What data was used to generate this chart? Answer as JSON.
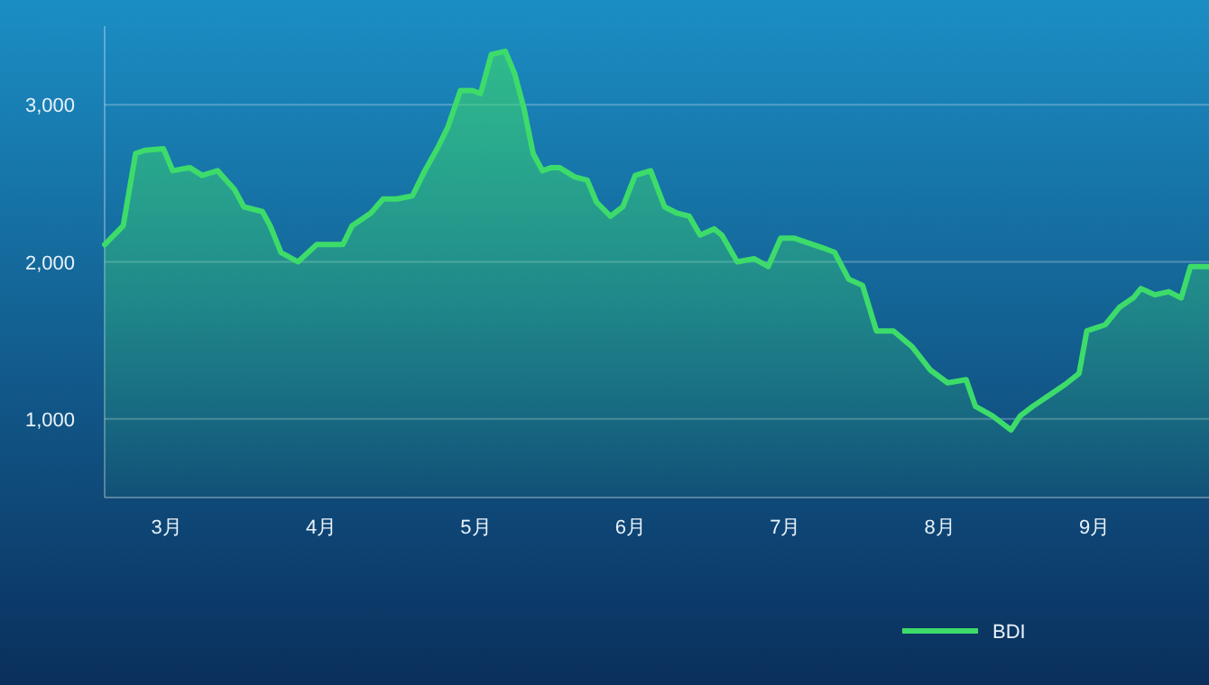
{
  "chart_data": {
    "type": "area",
    "x": [
      2.6,
      2.72,
      2.8,
      2.86,
      2.98,
      3.04,
      3.15,
      3.23,
      3.33,
      3.44,
      3.5,
      3.62,
      3.67,
      3.74,
      3.85,
      3.97,
      4.09,
      4.14,
      4.2,
      4.32,
      4.4,
      4.49,
      4.59,
      4.67,
      4.75,
      4.82,
      4.9,
      4.98,
      5.03,
      5.1,
      5.19,
      5.25,
      5.31,
      5.37,
      5.43,
      5.49,
      5.54,
      5.64,
      5.72,
      5.78,
      5.87,
      5.95,
      6.03,
      6.13,
      6.22,
      6.3,
      6.38,
      6.45,
      6.54,
      6.59,
      6.69,
      6.8,
      6.89,
      6.97,
      7.06,
      7.15,
      7.24,
      7.32,
      7.41,
      7.5,
      7.59,
      7.7,
      7.82,
      7.94,
      8.05,
      8.17,
      8.23,
      8.34,
      8.46,
      8.52,
      8.6,
      8.69,
      8.81,
      8.9,
      8.95,
      9.07,
      9.16,
      9.25,
      9.3,
      9.39,
      9.48,
      9.56,
      9.62,
      9.74
    ],
    "series": [
      {
        "name": "BDI",
        "color": "#3ddc6a",
        "values": [
          2110,
          2230,
          2690,
          2710,
          2720,
          2580,
          2600,
          2550,
          2580,
          2460,
          2350,
          2320,
          2230,
          2060,
          2000,
          2110,
          2110,
          2110,
          2230,
          2310,
          2400,
          2400,
          2420,
          2580,
          2720,
          2860,
          3090,
          3090,
          3070,
          3320,
          3340,
          3200,
          2980,
          2690,
          2580,
          2600,
          2600,
          2540,
          2520,
          2380,
          2290,
          2350,
          2550,
          2580,
          2350,
          2310,
          2290,
          2170,
          2210,
          2170,
          2000,
          2020,
          1970,
          2150,
          2150,
          2120,
          2090,
          2060,
          1890,
          1850,
          1560,
          1560,
          1460,
          1310,
          1230,
          1250,
          1080,
          1020,
          930,
          1020,
          1080,
          1140,
          1220,
          1290,
          1560,
          1600,
          1710,
          1770,
          1830,
          1790,
          1810,
          1770,
          1970,
          1970
        ]
      }
    ],
    "xlim": [
      2.6,
      9.74
    ],
    "xticks": [
      {
        "value": 3,
        "label": "3月"
      },
      {
        "value": 4,
        "label": "4月"
      },
      {
        "value": 5,
        "label": "5月"
      },
      {
        "value": 6,
        "label": "6月"
      },
      {
        "value": 7,
        "label": "7月"
      },
      {
        "value": 8,
        "label": "8月"
      },
      {
        "value": 9,
        "label": "9月"
      }
    ],
    "ylim": [
      500,
      3500
    ],
    "yticks": [
      {
        "value": 1000,
        "label": "1,000"
      },
      {
        "value": 2000,
        "label": "2,000"
      },
      {
        "value": 3000,
        "label": "3,000"
      }
    ],
    "grid": "y",
    "legend": "bottom right"
  }
}
